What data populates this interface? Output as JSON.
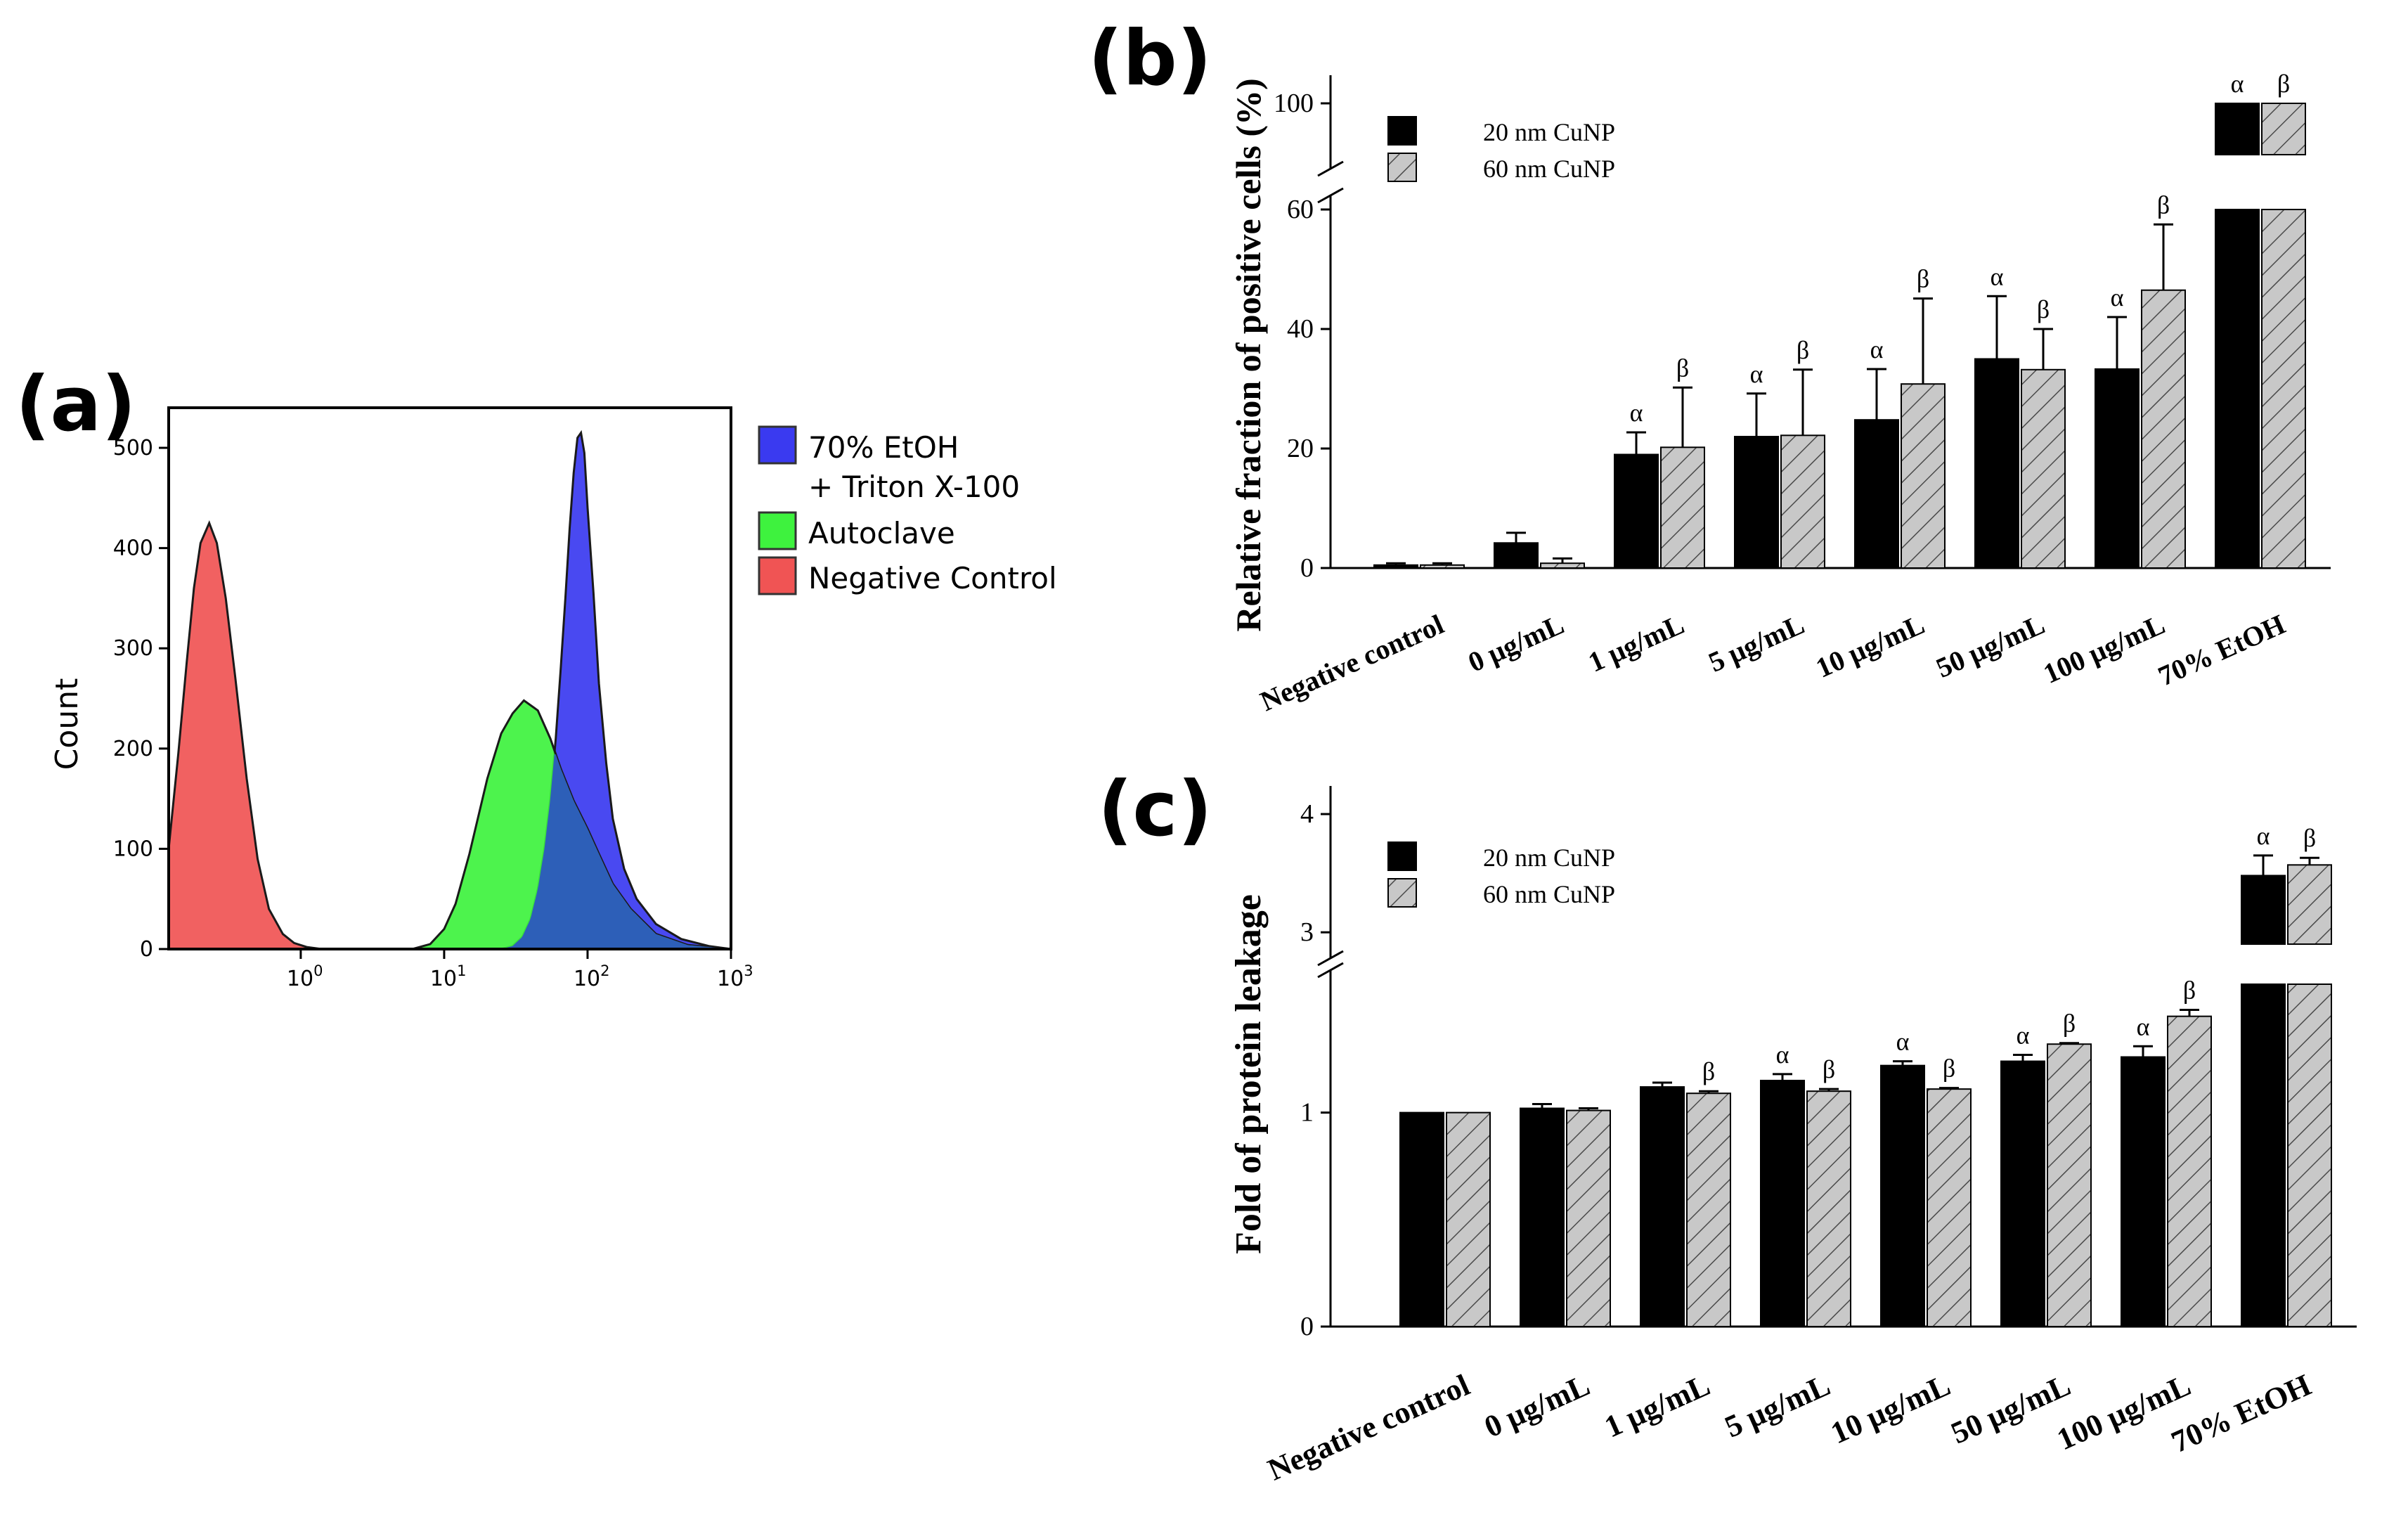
{
  "figure": {
    "panel_a_label": "(a)",
    "panel_b_label": "(b)",
    "panel_c_label": "(c)"
  },
  "colors": {
    "red_fill": "#f05454",
    "green_fill": "#3ef23e",
    "blue_fill": "#3a3af0",
    "overlap_fill": "#2d5fb8",
    "black_bar": "#000000",
    "grey_bar": "#c8c8c8"
  },
  "chart_data": [
    {
      "type": "area",
      "title": "",
      "xlabel": "",
      "ylabel": "Count",
      "xscale": "log",
      "xlim": [
        0.12,
        1000
      ],
      "ylim": [
        0,
        540
      ],
      "x_ticks": [
        {
          "value": 1,
          "label": "10",
          "exp": "0"
        },
        {
          "value": 10,
          "label": "10",
          "exp": "1"
        },
        {
          "value": 100,
          "label": "10",
          "exp": "2"
        },
        {
          "value": 1000,
          "label": "10",
          "exp": "3"
        }
      ],
      "y_ticks": [
        0,
        100,
        200,
        300,
        400,
        500
      ],
      "legend": [
        {
          "label_lines": [
            "70% EtOH",
            "+ Triton X-100"
          ],
          "color": "#3a3af0"
        },
        {
          "label_lines": [
            "Autoclave"
          ],
          "color": "#3ef23e"
        },
        {
          "label_lines": [
            "Negative Control"
          ],
          "color": "#f05454"
        }
      ],
      "series": [
        {
          "name": "Negative Control",
          "color": "#f05454",
          "x": [
            0.12,
            0.14,
            0.16,
            0.18,
            0.2,
            0.23,
            0.26,
            0.3,
            0.35,
            0.42,
            0.5,
            0.6,
            0.75,
            0.9,
            1.1,
            1.4
          ],
          "y": [
            100,
            195,
            285,
            360,
            405,
            425,
            405,
            350,
            270,
            170,
            90,
            40,
            15,
            6,
            2,
            0
          ]
        },
        {
          "name": "Autoclave",
          "color": "#3ef23e",
          "x": [
            6,
            8,
            10,
            12,
            15,
            20,
            25,
            30,
            36,
            45,
            55,
            65,
            80,
            100,
            120,
            150,
            200,
            300,
            500,
            1000
          ],
          "y": [
            0,
            5,
            20,
            45,
            95,
            170,
            215,
            235,
            248,
            238,
            210,
            180,
            148,
            120,
            95,
            65,
            40,
            15,
            4,
            0
          ]
        },
        {
          "name": "70% EtOH + Triton X-100",
          "color": "#3a3af0",
          "x": [
            25,
            30,
            35,
            40,
            45,
            50,
            55,
            60,
            65,
            70,
            75,
            80,
            85,
            90,
            95,
            100,
            110,
            120,
            135,
            150,
            180,
            220,
            300,
            450,
            700,
            1000
          ],
          "y": [
            0,
            3,
            12,
            30,
            60,
            100,
            150,
            210,
            280,
            350,
            420,
            475,
            510,
            515,
            495,
            440,
            355,
            265,
            185,
            130,
            80,
            50,
            25,
            10,
            3,
            0
          ]
        }
      ]
    },
    {
      "type": "bar",
      "title": "",
      "xlabel": "",
      "ylabel": "Relative fraction of positive cells (%)",
      "y_broken": {
        "lower_range": [
          0,
          60
        ],
        "upper_range": [
          98,
          100
        ]
      },
      "y_ticks": [
        0,
        20,
        40,
        60,
        100
      ],
      "categories": [
        "Negative control",
        "0 μg/mL",
        "1 μg/mL",
        "5 μg/mL",
        "10 μg/mL",
        "50 μg/mL",
        "100 μg/mL",
        "70% EtOH"
      ],
      "legend": [
        "20 nm CuNP",
        "60 nm CuNP"
      ],
      "series": [
        {
          "name": "20 nm CuNP",
          "values": [
            0.5,
            4.2,
            19,
            22,
            24.8,
            35,
            33.3,
            100
          ],
          "errors": [
            0.3,
            1.7,
            3.7,
            7.2,
            8.5,
            10.5,
            8.7,
            0
          ],
          "marks": [
            "",
            "",
            "α",
            "α",
            "α",
            "α",
            "α",
            "α"
          ]
        },
        {
          "name": "60 nm CuNP",
          "values": [
            0.5,
            0.8,
            20.2,
            22.2,
            30.8,
            33.2,
            46.5,
            100
          ],
          "errors": [
            0.3,
            0.8,
            10,
            11,
            14.3,
            6.8,
            11,
            0
          ],
          "marks": [
            "",
            "",
            "β",
            "β",
            "β",
            "β",
            "β",
            "β"
          ]
        }
      ]
    },
    {
      "type": "bar",
      "title": "",
      "xlabel": "",
      "ylabel": "Fold of protein leakage",
      "y_broken": {
        "lower_range": [
          0,
          1.6
        ],
        "upper_range": [
          2.9,
          4
        ]
      },
      "y_ticks": [
        0,
        1,
        3,
        4
      ],
      "categories": [
        "Negative control",
        "0 μg/mL",
        "1 μg/mL",
        "5 μg/mL",
        "10 μg/mL",
        "50 μg/mL",
        "100 μg/mL",
        "70% EtOH"
      ],
      "legend": [
        "20 nm CuNP",
        "60 nm CuNP"
      ],
      "series": [
        {
          "name": "20 nm CuNP",
          "values": [
            1.0,
            1.02,
            1.12,
            1.15,
            1.22,
            1.24,
            1.26,
            3.48
          ],
          "errors": [
            0,
            0.02,
            0.02,
            0.03,
            0.02,
            0.03,
            0.05,
            0.17
          ],
          "marks": [
            "",
            "",
            "",
            "α",
            "α",
            "α",
            "α",
            "α"
          ]
        },
        {
          "name": "60 nm CuNP",
          "values": [
            1.0,
            1.01,
            1.09,
            1.1,
            1.11,
            1.32,
            1.45,
            3.57
          ],
          "errors": [
            0,
            0.01,
            0.01,
            0.01,
            0.005,
            0.005,
            0.03,
            0.06
          ],
          "marks": [
            "",
            "",
            "β",
            "β",
            "β",
            "β",
            "β",
            "β"
          ]
        }
      ]
    }
  ]
}
